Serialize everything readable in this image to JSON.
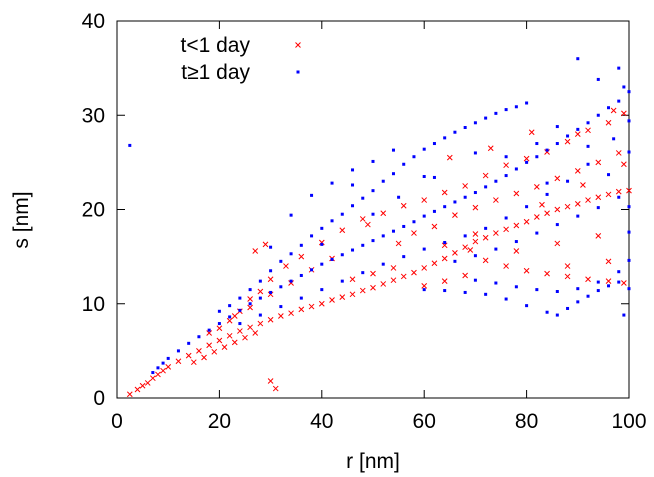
{
  "chart_data": {
    "type": "scatter",
    "title": "",
    "xlabel": "r [nm]",
    "ylabel": "s [nm]",
    "xlim": [
      0,
      100
    ],
    "ylim": [
      0,
      40
    ],
    "x_ticks": [
      0,
      20,
      40,
      60,
      80,
      100
    ],
    "y_ticks": [
      0,
      10,
      20,
      30,
      40
    ],
    "x_tick_labels": [
      "0",
      "20",
      "40",
      "60",
      "80",
      "100"
    ],
    "y_tick_labels": [
      "0",
      "10",
      "20",
      "30",
      "40"
    ],
    "grid": false,
    "legend_position": "top-left",
    "series": [
      {
        "name": "t<1 day",
        "marker": "x",
        "color": "#ff0000",
        "points": [
          [
            2.5,
            0.4
          ],
          [
            4,
            0.9
          ],
          [
            5,
            1.3
          ],
          [
            6,
            1.6
          ],
          [
            7,
            2.1
          ],
          [
            8,
            2.5
          ],
          [
            9,
            2.9
          ],
          [
            10,
            3.3
          ],
          [
            12,
            3.9
          ],
          [
            14,
            4.5
          ],
          [
            16,
            5.0
          ],
          [
            18,
            5.6
          ],
          [
            20,
            6.1
          ],
          [
            22,
            6.6
          ],
          [
            24,
            7.1
          ],
          [
            26,
            7.5
          ],
          [
            28,
            7.9
          ],
          [
            30,
            8.3
          ],
          [
            32,
            8.7
          ],
          [
            34,
            9.0
          ],
          [
            36,
            9.4
          ],
          [
            38,
            9.7
          ],
          [
            40,
            10.0
          ],
          [
            42,
            10.4
          ],
          [
            44,
            10.7
          ],
          [
            46,
            11.0
          ],
          [
            48,
            11.4
          ],
          [
            50,
            11.7
          ],
          [
            52,
            12.1
          ],
          [
            54,
            12.5
          ],
          [
            56,
            12.9
          ],
          [
            58,
            13.3
          ],
          [
            60,
            13.8
          ],
          [
            62,
            14.3
          ],
          [
            64,
            14.8
          ],
          [
            66,
            15.4
          ],
          [
            68,
            16.0
          ],
          [
            70,
            16.6
          ],
          [
            72,
            17.0
          ],
          [
            74,
            17.5
          ],
          [
            76,
            17.9
          ],
          [
            78,
            18.3
          ],
          [
            80,
            18.7
          ],
          [
            82,
            19.2
          ],
          [
            84,
            19.6
          ],
          [
            86,
            20.0
          ],
          [
            88,
            20.3
          ],
          [
            90,
            20.6
          ],
          [
            92,
            21.0
          ],
          [
            94,
            21.3
          ],
          [
            96,
            21.6
          ],
          [
            98,
            21.9
          ],
          [
            100,
            22.0
          ],
          [
            15,
            3.8
          ],
          [
            17,
            4.3
          ],
          [
            19,
            4.9
          ],
          [
            21,
            5.4
          ],
          [
            23,
            5.9
          ],
          [
            25,
            6.4
          ],
          [
            27,
            6.9
          ],
          [
            30,
            1.8
          ],
          [
            31,
            1.0
          ],
          [
            22,
            8.2
          ],
          [
            24,
            9.2
          ],
          [
            26,
            10.5
          ],
          [
            28,
            11.3
          ],
          [
            30,
            12.6
          ],
          [
            33,
            14.0
          ],
          [
            36,
            15.0
          ],
          [
            40,
            16.5
          ],
          [
            44,
            17.8
          ],
          [
            48,
            19.0
          ],
          [
            52,
            19.6
          ],
          [
            56,
            20.4
          ],
          [
            60,
            21.0
          ],
          [
            64,
            21.8
          ],
          [
            68,
            22.5
          ],
          [
            72,
            23.6
          ],
          [
            76,
            24.7
          ],
          [
            80,
            25.4
          ],
          [
            84,
            26.1
          ],
          [
            88,
            27.2
          ],
          [
            92,
            28.4
          ],
          [
            96,
            29.2
          ],
          [
            99,
            30.2
          ],
          [
            55,
            16.4
          ],
          [
            58,
            17.5
          ],
          [
            62,
            18.2
          ],
          [
            66,
            19.4
          ],
          [
            70,
            20.2
          ],
          [
            74,
            21.0
          ],
          [
            78,
            21.7
          ],
          [
            82,
            22.4
          ],
          [
            86,
            23.3
          ],
          [
            90,
            24.1
          ],
          [
            94,
            25.0
          ],
          [
            98,
            26.0
          ],
          [
            64,
            16.2
          ],
          [
            69,
            15.7
          ],
          [
            72,
            14.6
          ],
          [
            76,
            14.0
          ],
          [
            80,
            13.5
          ],
          [
            84,
            13.2
          ],
          [
            88,
            12.9
          ],
          [
            92,
            12.6
          ],
          [
            96,
            12.4
          ],
          [
            99,
            12.2
          ],
          [
            46,
            12.6
          ],
          [
            50,
            13.2
          ],
          [
            54,
            13.8
          ],
          [
            42,
            14.8
          ],
          [
            38,
            13.6
          ],
          [
            34,
            12.2
          ],
          [
            30,
            11.0
          ],
          [
            26,
            9.6
          ],
          [
            23,
            8.7
          ],
          [
            20,
            7.4
          ],
          [
            18,
            6.9
          ],
          [
            29,
            16.3
          ],
          [
            27,
            15.6
          ],
          [
            49,
            18.4
          ],
          [
            65,
            25.5
          ],
          [
            73,
            26.5
          ],
          [
            81,
            28.2
          ],
          [
            90,
            28.0
          ],
          [
            97,
            30.5
          ],
          [
            94,
            17.2
          ],
          [
            86,
            16.4
          ],
          [
            78,
            15.6
          ],
          [
            70,
            17.4
          ],
          [
            88,
            14.0
          ],
          [
            96,
            14.5
          ],
          [
            83,
            20.5
          ],
          [
            91,
            22.6
          ],
          [
            99,
            24.8
          ],
          [
            60,
            11.9
          ],
          [
            64,
            12.4
          ],
          [
            68,
            13.0
          ]
        ]
      },
      {
        "name": "t≥1 day",
        "marker": "square",
        "color": "#0000ff",
        "points": [
          [
            2.5,
            26.8
          ],
          [
            7,
            2.7
          ],
          [
            8,
            3.2
          ],
          [
            9,
            3.7
          ],
          [
            10,
            4.2
          ],
          [
            12,
            5.0
          ],
          [
            14,
            5.8
          ],
          [
            16,
            6.5
          ],
          [
            18,
            7.2
          ],
          [
            20,
            7.9
          ],
          [
            22,
            8.6
          ],
          [
            24,
            9.3
          ],
          [
            26,
            10.0
          ],
          [
            28,
            10.6
          ],
          [
            30,
            11.2
          ],
          [
            32,
            11.8
          ],
          [
            34,
            12.4
          ],
          [
            36,
            13.0
          ],
          [
            38,
            13.6
          ],
          [
            40,
            14.2
          ],
          [
            42,
            14.7
          ],
          [
            44,
            15.2
          ],
          [
            46,
            15.7
          ],
          [
            48,
            16.2
          ],
          [
            50,
            16.7
          ],
          [
            52,
            17.2
          ],
          [
            54,
            17.7
          ],
          [
            56,
            18.2
          ],
          [
            58,
            18.7
          ],
          [
            60,
            19.3
          ],
          [
            62,
            19.8
          ],
          [
            64,
            20.3
          ],
          [
            66,
            20.8
          ],
          [
            68,
            21.3
          ],
          [
            70,
            21.8
          ],
          [
            72,
            22.4
          ],
          [
            74,
            23.0
          ],
          [
            76,
            23.6
          ],
          [
            78,
            24.3
          ],
          [
            80,
            25.0
          ],
          [
            82,
            25.6
          ],
          [
            84,
            26.3
          ],
          [
            86,
            27.0
          ],
          [
            88,
            27.8
          ],
          [
            90,
            28.5
          ],
          [
            92,
            29.2
          ],
          [
            94,
            30.0
          ],
          [
            96,
            30.8
          ],
          [
            98,
            31.5
          ],
          [
            100,
            32.5
          ],
          [
            90,
            36.0
          ],
          [
            98,
            35.0
          ],
          [
            94,
            33.8
          ],
          [
            20,
            9.2
          ],
          [
            22,
            9.8
          ],
          [
            24,
            10.6
          ],
          [
            26,
            11.5
          ],
          [
            28,
            12.4
          ],
          [
            30,
            13.5
          ],
          [
            32,
            14.5
          ],
          [
            34,
            15.3
          ],
          [
            36,
            16.2
          ],
          [
            38,
            17.2
          ],
          [
            40,
            18.0
          ],
          [
            42,
            18.8
          ],
          [
            44,
            19.5
          ],
          [
            46,
            20.4
          ],
          [
            48,
            21.2
          ],
          [
            50,
            22.0
          ],
          [
            52,
            23.0
          ],
          [
            54,
            23.8
          ],
          [
            56,
            24.8
          ],
          [
            58,
            25.6
          ],
          [
            60,
            26.4
          ],
          [
            62,
            27.0
          ],
          [
            64,
            27.6
          ],
          [
            66,
            28.2
          ],
          [
            68,
            28.7
          ],
          [
            70,
            29.2
          ],
          [
            72,
            29.7
          ],
          [
            74,
            30.2
          ],
          [
            76,
            30.6
          ],
          [
            78,
            30.9
          ],
          [
            80,
            31.3
          ],
          [
            30,
            16.0
          ],
          [
            34,
            19.4
          ],
          [
            38,
            21.5
          ],
          [
            42,
            22.8
          ],
          [
            46,
            24.2
          ],
          [
            50,
            25.1
          ],
          [
            54,
            26.3
          ],
          [
            60,
            11.5
          ],
          [
            64,
            11.4
          ],
          [
            68,
            11.2
          ],
          [
            72,
            11.0
          ],
          [
            76,
            10.5
          ],
          [
            80,
            9.8
          ],
          [
            84,
            9.1
          ],
          [
            86,
            8.8
          ],
          [
            88,
            9.5
          ],
          [
            90,
            10.2
          ],
          [
            92,
            10.8
          ],
          [
            94,
            11.4
          ],
          [
            96,
            11.9
          ],
          [
            98,
            12.3
          ],
          [
            100,
            11.6
          ],
          [
            70,
            12.5
          ],
          [
            74,
            12.2
          ],
          [
            78,
            11.8
          ],
          [
            82,
            11.5
          ],
          [
            86,
            11.3
          ],
          [
            90,
            11.6
          ],
          [
            94,
            12.3
          ],
          [
            98,
            13.4
          ],
          [
            66,
            14.5
          ],
          [
            70,
            15.1
          ],
          [
            74,
            15.8
          ],
          [
            78,
            16.6
          ],
          [
            82,
            17.5
          ],
          [
            86,
            18.4
          ],
          [
            90,
            19.3
          ],
          [
            94,
            20.2
          ],
          [
            98,
            21.3
          ],
          [
            100,
            20.3
          ],
          [
            100,
            26.1
          ],
          [
            100,
            29.4
          ],
          [
            99,
            33.0
          ],
          [
            97,
            27.5
          ],
          [
            92,
            24.8
          ],
          [
            88,
            23.0
          ],
          [
            84,
            21.6
          ],
          [
            80,
            20.3
          ],
          [
            76,
            19.1
          ],
          [
            72,
            18.0
          ],
          [
            68,
            17.2
          ],
          [
            64,
            16.5
          ],
          [
            60,
            15.8
          ],
          [
            56,
            15.0
          ],
          [
            52,
            14.2
          ],
          [
            48,
            13.3
          ],
          [
            44,
            12.4
          ],
          [
            40,
            11.5
          ],
          [
            36,
            10.6
          ],
          [
            32,
            9.7
          ],
          [
            28,
            8.8
          ],
          [
            24,
            7.9
          ],
          [
            46,
            22.6
          ],
          [
            62,
            23.4
          ],
          [
            76,
            25.6
          ],
          [
            84,
            22.8
          ],
          [
            92,
            26.7
          ],
          [
            96,
            23.7
          ],
          [
            100,
            17.6
          ],
          [
            100,
            14.6
          ],
          [
            99,
            8.8
          ],
          [
            86,
            28.8
          ],
          [
            82,
            27.0
          ],
          [
            70,
            26.0
          ],
          [
            60,
            23.5
          ],
          [
            55,
            21.3
          ],
          [
            50,
            19.5
          ],
          [
            40,
            16.3
          ]
        ]
      }
    ]
  }
}
